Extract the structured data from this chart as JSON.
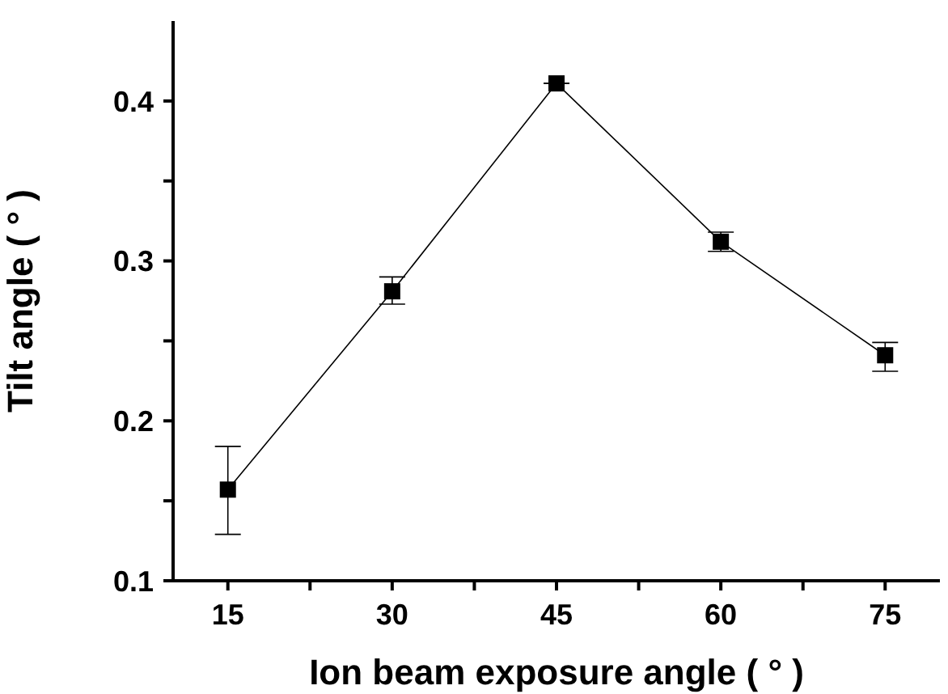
{
  "chart_data": {
    "type": "line",
    "xlabel": "Ion beam exposure angle ( ° )",
    "ylabel": "Tilt angle ( ° )",
    "x": [
      15,
      30,
      45,
      60,
      75
    ],
    "series": [
      {
        "color": "#000000",
        "values": [
          0.157,
          0.281,
          0.411,
          0.312,
          0.241
        ],
        "errors": [
          [
            0.129,
            0.184
          ],
          [
            0.273,
            0.29
          ],
          null,
          [
            0.306,
            0.318
          ],
          [
            0.231,
            0.249
          ]
        ]
      }
    ],
    "xlim": [
      10,
      80
    ],
    "xticks": [
      15,
      {
        "value": 22.5,
        "label": null
      },
      30,
      {
        "value": 37.5,
        "label": null
      },
      45,
      {
        "value": 52.5,
        "label": null
      },
      60,
      {
        "value": 67.5,
        "label": null
      },
      75
    ],
    "ylim": [
      0.1,
      0.45
    ],
    "yticks": [
      0.1,
      {
        "value": 0.15,
        "label": null
      },
      0.2,
      {
        "value": 0.25,
        "label": null
      },
      0.3,
      {
        "value": 0.35,
        "label": null
      },
      0.4
    ],
    "marker": "square",
    "line_style": "solid",
    "grid": false,
    "legend": false
  }
}
